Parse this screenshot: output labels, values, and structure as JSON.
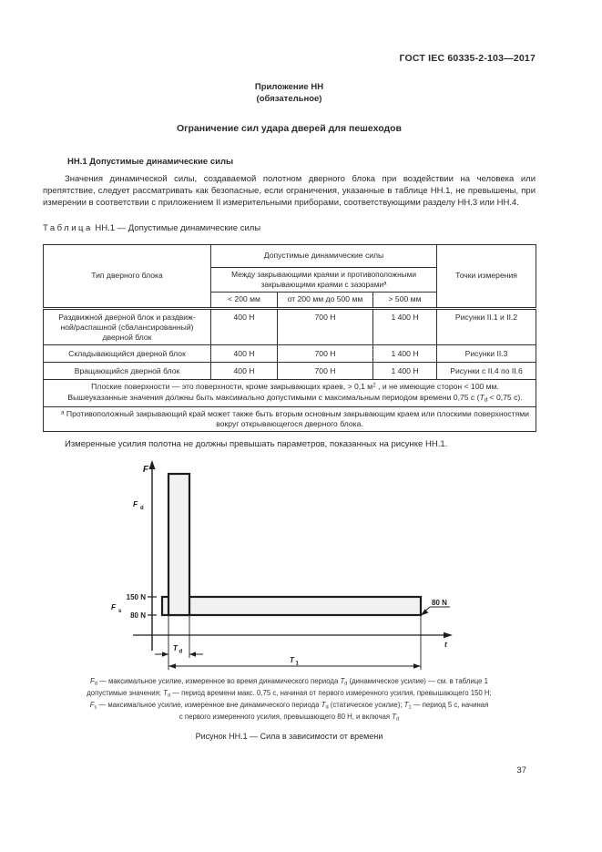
{
  "page": {
    "doc_number": "ГОСТ IEC 60335-2-103—2017",
    "appendix_line1": "Приложение НН",
    "appendix_line2": "(обязательное)",
    "title": "Ограничение сил удара дверей для пешеходов",
    "section_heading": "НН.1 Допустимые динамические силы",
    "paragraph1": "Значения динамической силы, создаваемой полотном дверного блока при воздействии на человека или препятствие, следует рассматривать как безопасные, если ограничения, указанные в таблице НН.1, не превышены, при измерении в соответствии с приложением II измерительными приборами, соответствующими разделу НН.3 или НН.4.",
    "table_label_spaced": "Таблица",
    "table_label_rest": " НН.1 — Допустимые динамические силы",
    "paragraph2": "Измеренные усилия полотна не должны превышать параметров, показанных на рисунке НН.1.",
    "figure_caption": "Рисунок НН.1 — Сила в зависимости от времени",
    "page_number": "37"
  },
  "table": {
    "col_type_header": "Тип дверного блока",
    "group_header": "Допустимые динамические силы",
    "subgroup_runs": [
      {
        "t": "Между закрывающими краями и противоположными закрывающими краями с зазорами"
      },
      {
        "t": "а",
        "s": "sup"
      }
    ],
    "col_lt200": "< 200 мм",
    "col_200to500": "от 200 мм до 500 мм",
    "col_gt500": "> 500 мм",
    "col_points_header": "Точки измерения",
    "rows": [
      {
        "type": "Раздвижной дверной блок и раздвиж-\nной/распашной (сбалансированный)\nдверной блок",
        "lt200": "400 Н",
        "r200to500": "700 Н",
        "gt500": "1 400 Н",
        "points": "Рисунки II.1 и II.2"
      },
      {
        "type": "Складывающийся дверной блок",
        "lt200": "400 Н",
        "r200to500": "700 Н",
        "gt500": "1 400 Н",
        "points": "Рисунки II.3"
      },
      {
        "type": "Вращающийся дверной блок",
        "lt200": "400 Н",
        "r200to500": "700 Н",
        "gt500": "1 400 Н",
        "points": "Рисунки с II.4 по II.6"
      }
    ],
    "note_p1_runs": [
      {
        "t": "Плоские поверхности — это поверхности, кроме закрывающих краев, > 0,1 м"
      },
      {
        "t": "2",
        "s": "sup"
      },
      {
        "t": " , и не имеющие сторон < 100 мм."
      }
    ],
    "note_p2_runs": [
      {
        "t": "Вышеуказанные значения должны быть максимально допустимыми с максимальным периодом времени 0,75 с ("
      },
      {
        "t": "T",
        "s": "i"
      },
      {
        "t": "d",
        "s": "sub"
      },
      {
        "t": " < 0,75 с)."
      }
    ],
    "footnote_runs": [
      {
        "t": "а",
        "s": "sup"
      },
      {
        "t": " Противоположный закрывающий край может также быть вторым основным закрывающим краем или плоскими поверхностями вокруг открывающегося дверного блока."
      }
    ]
  },
  "figure": {
    "y_axis_label": "F",
    "x_axis_label": "t",
    "fd_main": "F",
    "fd_sub": "d",
    "fs_main": "F",
    "fs_sub": "s",
    "tick_150": "150 N",
    "tick_80": "80 N",
    "annotation_80": "80 N",
    "td_main": "T",
    "td_sub": "d",
    "t1_main": "T",
    "t1_sub": "1"
  },
  "legend": {
    "line1_runs": [
      {
        "t": "F",
        "s": "i"
      },
      {
        "t": "d",
        "s": "sub"
      },
      {
        "t": " — максимальное усилие, измеренное во время динамического периода "
      },
      {
        "t": "T",
        "s": "i"
      },
      {
        "t": "d",
        "s": "sub"
      },
      {
        "t": " (динамическое усилие) — см. в таблице 1"
      }
    ],
    "line2_runs": [
      {
        "t": "допустимые значения; "
      },
      {
        "t": "T",
        "s": "i"
      },
      {
        "t": "d",
        "s": "sub"
      },
      {
        "t": " — период времени макс. 0,75 с, начиная от первого измеренного усилия, превышающего 150 Н;"
      }
    ],
    "line3_runs": [
      {
        "t": "F",
        "s": "i"
      },
      {
        "t": "s",
        "s": "sub"
      },
      {
        "t": " — максимальное усилие, измеренное вне динамического периода "
      },
      {
        "t": "T",
        "s": "i"
      },
      {
        "t": "d",
        "s": "sub"
      },
      {
        "t": " (статическое усилие); "
      },
      {
        "t": "T",
        "s": "i"
      },
      {
        "t": "1",
        "s": "sub"
      },
      {
        "t": " — период 5 с, начиная"
      }
    ],
    "line4_runs": [
      {
        "t": "с первого измеренного усилия, превышающего 80 Н, и включая "
      },
      {
        "t": "T",
        "s": "i"
      },
      {
        "t": "d",
        "s": "sub"
      }
    ]
  },
  "chart_data": {
    "type": "area",
    "title": "Рисунок НН.1 — Сила в зависимости от времени",
    "xlabel": "t",
    "ylabel": "F",
    "y_ticks": [
      "150 N",
      "80 N"
    ],
    "grid": false,
    "series": [
      {
        "name": "Fd — динамическое усилие",
        "shape": "узкий импульс высотой Fd, длительность Td (макс. 0,75 с)",
        "threshold_start": "150 N"
      },
      {
        "name": "Fs — статическое усилие",
        "shape": "горизонтальная полоса от 80 N до 150 N, длительность T1 (5 с)",
        "threshold_start": "80 N"
      }
    ],
    "annotations": [
      "80 N — уровень в конце периода T1",
      "Td — ширина импульса",
      "T1 — полный период измерения"
    ]
  }
}
